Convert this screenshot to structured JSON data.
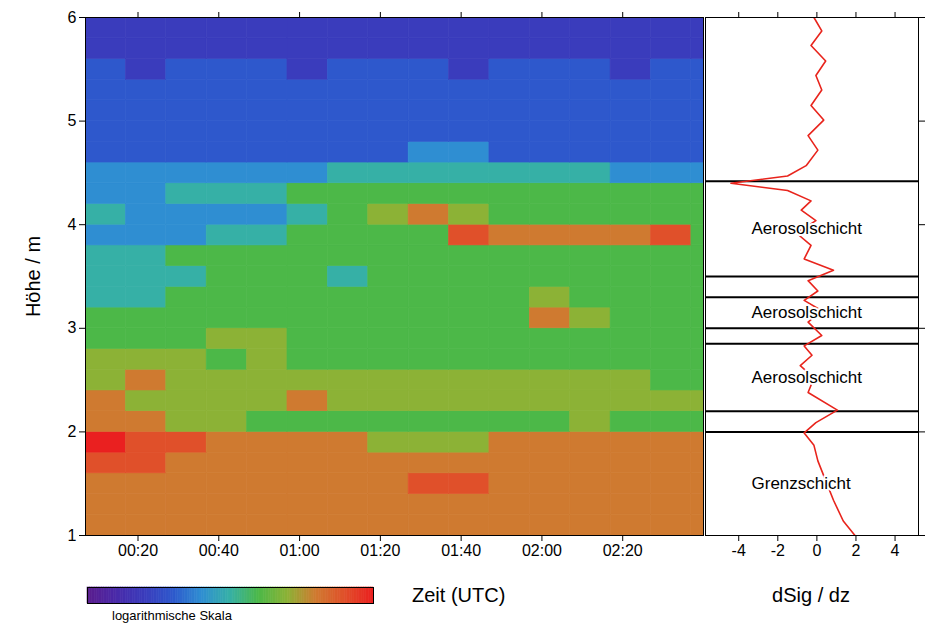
{
  "chart_data": [
    {
      "type": "heatmap",
      "x_label": "Zeit (UTC)",
      "y_label": "Höhe / m",
      "xlim": [
        7,
        160
      ],
      "xticks": [
        {
          "value": 20,
          "label": "00:20"
        },
        {
          "value": 40,
          "label": "00:40"
        },
        {
          "value": 60,
          "label": "01:00"
        },
        {
          "value": 80,
          "label": "01:20"
        },
        {
          "value": 100,
          "label": "01:40"
        },
        {
          "value": 120,
          "label": "02:00"
        },
        {
          "value": 140,
          "label": "02:20"
        }
      ],
      "ylim": [
        1,
        6
      ],
      "yticks": [
        1,
        2,
        3,
        4,
        5,
        6
      ],
      "time_edges": [
        7,
        17,
        27,
        37,
        47,
        57,
        67,
        77,
        87,
        97,
        107,
        117,
        127,
        137,
        147,
        157,
        160
      ],
      "height_edges": [
        1,
        1.2,
        1.4,
        1.6,
        1.8,
        2,
        2.2,
        2.4,
        2.6,
        2.8,
        3,
        3.2,
        3.4,
        3.6,
        3.8,
        4,
        4.2,
        4.4,
        4.6,
        4.8,
        5,
        5.2,
        5.4,
        5.6,
        5.8,
        6
      ],
      "cells": [
        [
          8,
          8,
          8,
          8,
          8,
          8,
          8,
          8,
          8,
          8,
          8,
          8,
          8,
          8,
          8,
          8
        ],
        [
          8,
          8,
          8,
          8,
          8,
          8,
          8,
          8,
          8,
          8,
          8,
          8,
          8,
          8,
          8,
          8
        ],
        [
          8,
          8,
          8,
          8,
          8,
          8,
          8,
          8,
          9,
          9,
          8,
          8,
          8,
          8,
          8,
          8
        ],
        [
          9,
          9,
          8,
          8,
          8,
          8,
          8,
          8,
          8,
          8,
          8,
          8,
          8,
          8,
          8,
          8
        ],
        [
          10,
          9,
          9,
          8,
          8,
          8,
          8,
          7,
          7,
          7,
          8,
          8,
          8,
          8,
          8,
          8
        ],
        [
          8,
          8,
          7,
          7,
          6,
          6,
          6,
          6,
          6,
          6,
          6,
          6,
          7,
          6,
          6,
          6
        ],
        [
          8,
          7,
          7,
          7,
          7,
          8,
          7,
          7,
          7,
          7,
          7,
          7,
          7,
          7,
          7,
          7
        ],
        [
          7,
          8,
          7,
          7,
          7,
          7,
          7,
          7,
          7,
          7,
          7,
          7,
          7,
          7,
          6,
          6
        ],
        [
          7,
          7,
          7,
          6,
          7,
          6,
          6,
          6,
          6,
          6,
          6,
          6,
          6,
          6,
          6,
          6
        ],
        [
          6,
          6,
          6,
          7,
          7,
          6,
          6,
          6,
          6,
          6,
          6,
          6,
          6,
          6,
          6,
          6
        ],
        [
          6,
          6,
          6,
          6,
          6,
          6,
          6,
          6,
          6,
          6,
          6,
          8,
          7,
          6,
          6,
          6
        ],
        [
          5,
          5,
          6,
          6,
          6,
          6,
          6,
          6,
          6,
          6,
          6,
          7,
          6,
          6,
          6,
          6
        ],
        [
          5,
          5,
          5,
          6,
          6,
          6,
          5,
          6,
          6,
          6,
          6,
          6,
          6,
          6,
          6,
          6
        ],
        [
          5,
          5,
          6,
          6,
          6,
          6,
          6,
          6,
          6,
          6,
          6,
          6,
          6,
          6,
          6,
          6
        ],
        [
          4,
          4,
          4,
          5,
          5,
          6,
          6,
          6,
          6,
          9,
          8,
          8,
          8,
          8,
          9,
          6
        ],
        [
          5,
          4,
          4,
          4,
          4,
          5,
          6,
          7,
          8,
          7,
          6,
          6,
          6,
          6,
          6,
          6
        ],
        [
          4,
          4,
          5,
          5,
          5,
          6,
          6,
          6,
          6,
          6,
          6,
          6,
          6,
          6,
          6,
          6
        ],
        [
          4,
          4,
          4,
          4,
          4,
          4,
          5,
          5,
          5,
          5,
          5,
          5,
          5,
          4,
          4,
          4
        ],
        [
          3,
          3,
          3,
          3,
          3,
          3,
          3,
          3,
          4,
          4,
          3,
          3,
          3,
          3,
          3,
          3
        ],
        [
          3,
          3,
          3,
          3,
          3,
          3,
          3,
          3,
          3,
          3,
          3,
          3,
          3,
          3,
          3,
          3
        ],
        [
          3,
          3,
          3,
          3,
          3,
          3,
          3,
          3,
          3,
          3,
          3,
          3,
          3,
          3,
          3,
          3
        ],
        [
          3,
          3,
          3,
          3,
          3,
          3,
          3,
          3,
          3,
          3,
          3,
          3,
          3,
          3,
          3,
          3
        ],
        [
          3,
          2,
          3,
          3,
          3,
          2,
          3,
          3,
          3,
          2,
          3,
          3,
          3,
          2,
          3,
          3
        ],
        [
          2,
          2,
          2,
          2,
          2,
          2,
          2,
          2,
          2,
          2,
          2,
          2,
          2,
          2,
          2,
          2
        ],
        [
          2,
          2,
          2,
          2,
          2,
          2,
          2,
          2,
          2,
          2,
          2,
          2,
          2,
          2,
          2,
          2
        ]
      ],
      "colorbar": {
        "range": [
          0,
          10
        ],
        "ticks": [],
        "label": "logarithmische Skala"
      }
    },
    {
      "type": "line",
      "x_label": "dSig / dz",
      "xlim": [
        -5.7,
        5.2
      ],
      "xticks": [
        -4,
        -2,
        0,
        2,
        4
      ],
      "ylim": [
        1,
        6
      ],
      "yticks": [
        1,
        2,
        3,
        4,
        5,
        6
      ],
      "tick_labels": "x",
      "series": [
        {
          "color": "#e8241c",
          "x": [
            -0.15,
            0.25,
            -0.3,
            0.45,
            -0.05,
            0.25,
            -0.3,
            0.35,
            -0.45,
            0.05,
            -0.55,
            -1.5,
            -4.4,
            -1.5,
            -0.3,
            -0.8,
            -0.05,
            -1.05,
            -0.3,
            -0.65,
            0.85,
            -0.45,
            0.05,
            -0.65,
            0.25,
            -0.45,
            0.25,
            -0.65,
            -0.25,
            -0.85,
            -0.15,
            -0.45,
            1.05,
            -0.05,
            -0.65,
            -0.15,
            0.05,
            0.45,
            0.85,
            1.35,
            1.95
          ],
          "y": [
            6.0,
            5.87,
            5.73,
            5.58,
            5.44,
            5.3,
            5.15,
            5.01,
            4.86,
            4.72,
            4.57,
            4.47,
            4.4,
            4.33,
            4.23,
            4.14,
            4.04,
            3.92,
            3.8,
            3.67,
            3.56,
            3.46,
            3.36,
            3.27,
            3.17,
            3.06,
            2.93,
            2.83,
            2.74,
            2.64,
            2.52,
            2.38,
            2.21,
            2.09,
            1.99,
            1.87,
            1.72,
            1.53,
            1.34,
            1.14,
            1.0
          ]
        }
      ],
      "layers": [
        {
          "label": "Aerosolschicht",
          "bottom": 3.5,
          "top": 4.42
        },
        {
          "label": "Aerosolschicht",
          "bottom": 3.0,
          "top": 3.3
        },
        {
          "label": "Aerosolschicht",
          "bottom": 2.2,
          "top": 2.85
        },
        {
          "label": "Grenzschicht",
          "bottom": null,
          "top": 2.0
        }
      ]
    }
  ]
}
